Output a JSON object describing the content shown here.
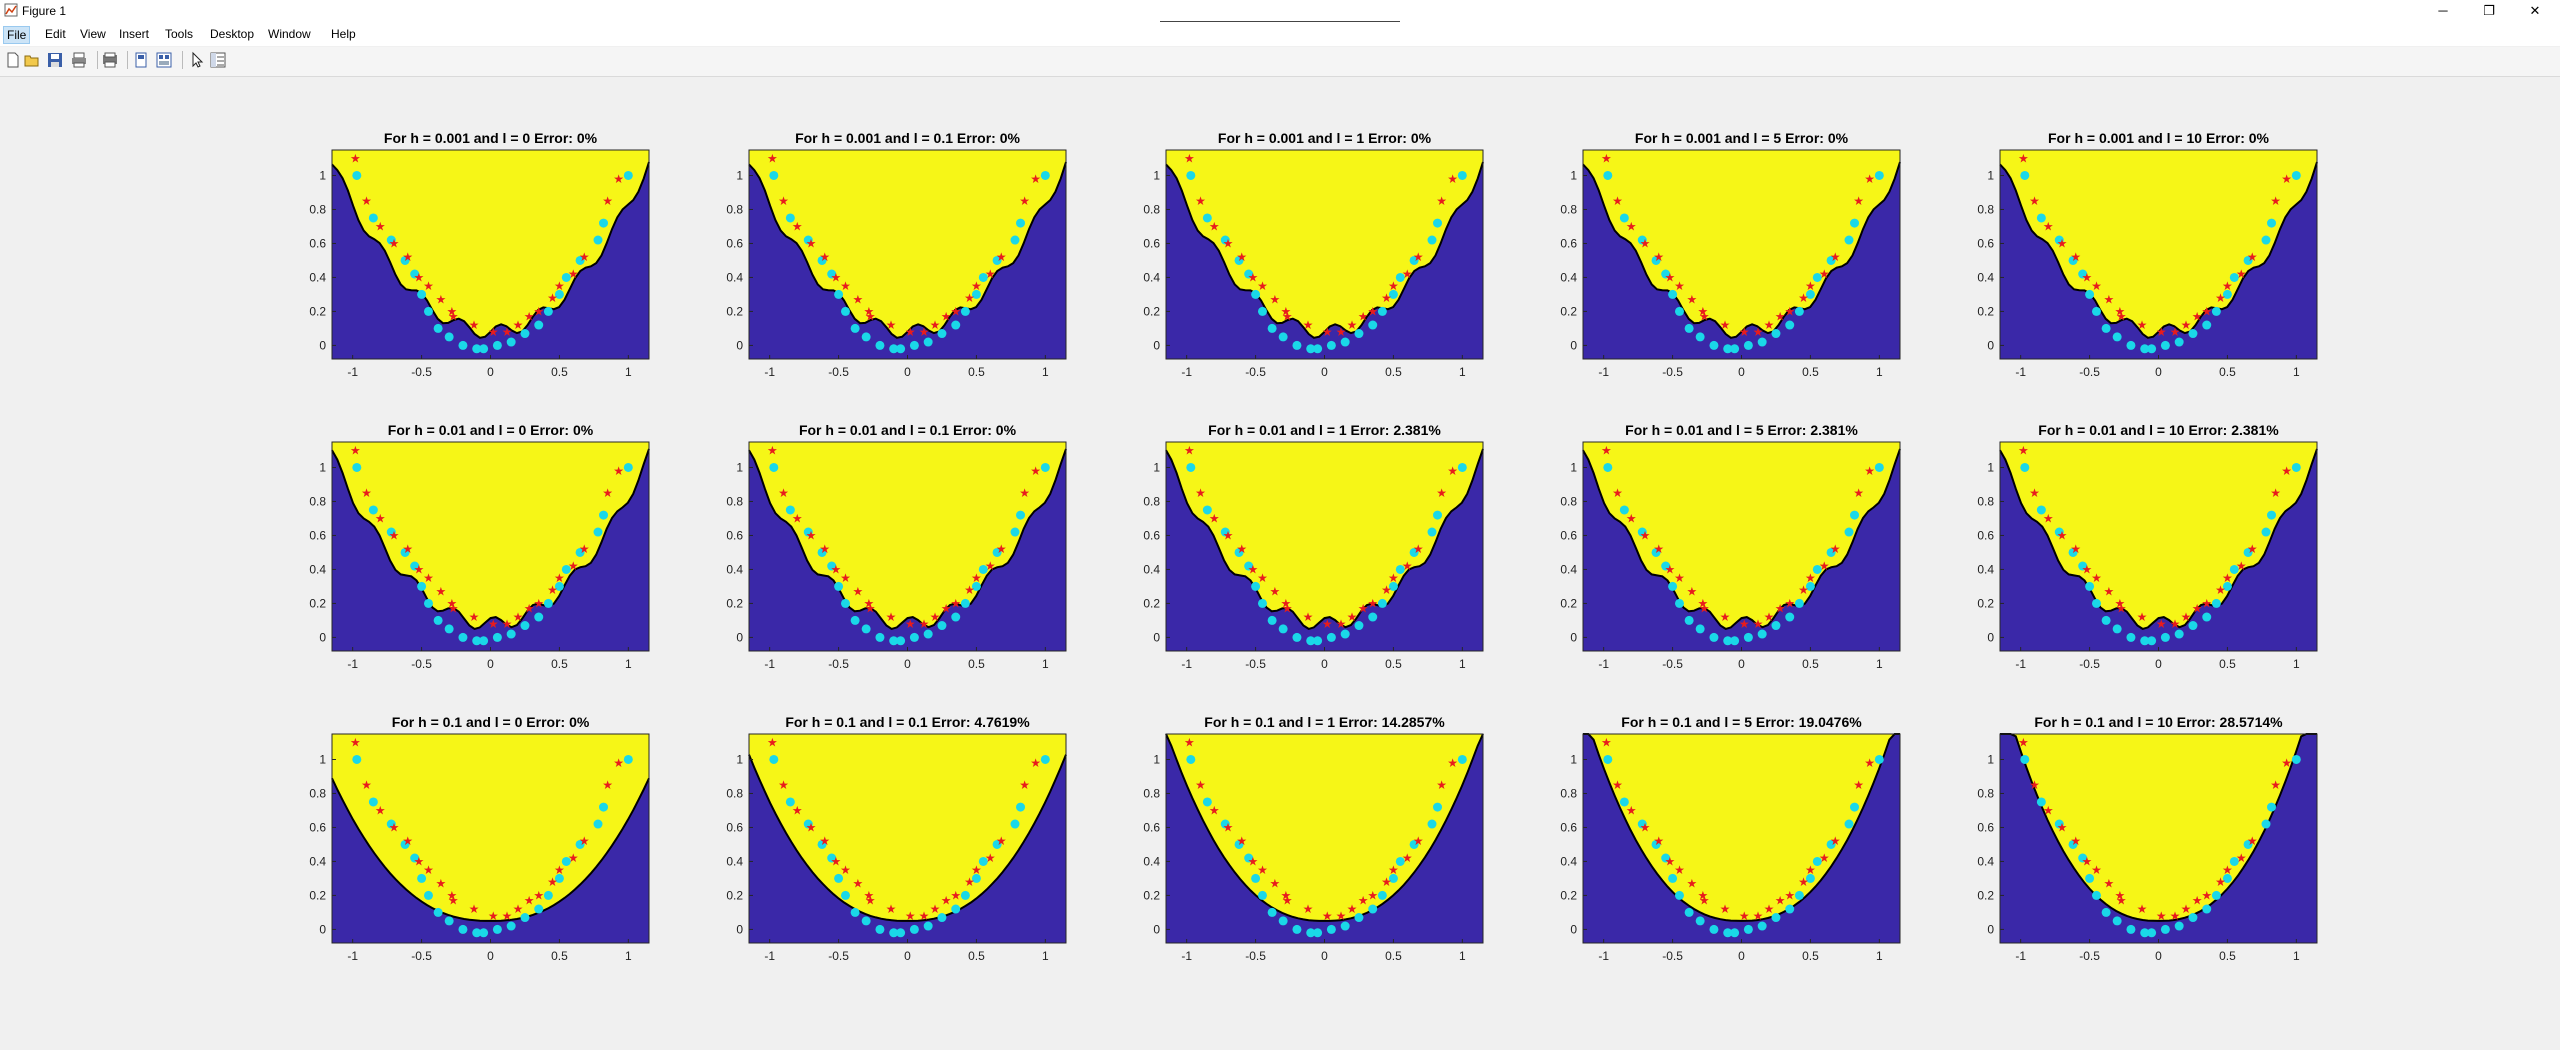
{
  "window": {
    "title": "Figure 1"
  },
  "window_controls": [
    "─",
    "❐",
    "✕"
  ],
  "menu": [
    "File",
    "Edit",
    "View",
    "Insert",
    "Tools",
    "Desktop",
    "Window",
    "Help"
  ],
  "toolbar": [
    "new-figure-icon",
    "open-file-icon",
    "save-icon",
    "print-icon",
    "print-preview-icon",
    "link-plot-icon",
    "insert-colorbar-icon",
    "edit-plot-icon",
    "property-inspector-icon"
  ],
  "colors": {
    "class_region": "#f6f617",
    "other_region": "#3a28a8",
    "star_marker": "#e81c1c",
    "circle_marker": "#1ad8e8",
    "boundary": "#000000"
  },
  "chart_data": {
    "type": "scatter",
    "grid": "3x5",
    "xlim": [
      -1.15,
      1.15
    ],
    "ylim": [
      -0.08,
      1.15
    ],
    "xticks": [
      "-1",
      "-0.5",
      "0",
      "0.5",
      "1"
    ],
    "yticks": [
      "0",
      "0.2",
      "0.4",
      "0.6",
      "0.8",
      "1"
    ],
    "legend": "none",
    "series": [
      {
        "marker": "star",
        "color": "#e81c1c",
        "x": [
          -0.98,
          -0.9,
          -0.8,
          -0.7,
          -0.6,
          -0.52,
          -0.45,
          -0.36,
          -0.28,
          -0.27,
          -0.12,
          0.02,
          0.12,
          0.2,
          0.28,
          0.35,
          0.45,
          0.5,
          0.6,
          0.68,
          0.85,
          0.93
        ],
        "y": [
          1.1,
          0.85,
          0.7,
          0.6,
          0.52,
          0.4,
          0.35,
          0.27,
          0.2,
          0.17,
          0.12,
          0.08,
          0.08,
          0.12,
          0.17,
          0.2,
          0.28,
          0.35,
          0.42,
          0.52,
          0.85,
          0.98
        ]
      },
      {
        "marker": "circle",
        "color": "#1ad8e8",
        "x": [
          -0.97,
          -0.85,
          -0.72,
          -0.62,
          -0.55,
          -0.5,
          -0.45,
          -0.38,
          -0.3,
          -0.2,
          -0.1,
          -0.05,
          0.05,
          0.15,
          0.25,
          0.35,
          0.42,
          0.5,
          0.55,
          0.65,
          0.78,
          0.82,
          1.0
        ],
        "y": [
          1.0,
          0.75,
          0.62,
          0.5,
          0.42,
          0.3,
          0.2,
          0.1,
          0.05,
          0.0,
          -0.02,
          -0.02,
          0.0,
          0.02,
          0.07,
          0.12,
          0.2,
          0.3,
          0.4,
          0.5,
          0.62,
          0.72,
          1.0
        ]
      }
    ],
    "subplots": [
      {
        "title": "For h = 0.001 and l = 0 Error: 0%"
      },
      {
        "title": "For h = 0.001 and l = 0.1 Error: 0%"
      },
      {
        "title": "For h = 0.001 and l = 1 Error: 0%"
      },
      {
        "title": "For h = 0.001 and l = 5 Error: 0%"
      },
      {
        "title": "For h = 0.001 and l = 10 Error: 0%"
      },
      {
        "title": "For h = 0.01 and l = 0 Error: 0%"
      },
      {
        "title": "For h = 0.01 and l = 0.1 Error: 0%"
      },
      {
        "title": "For h = 0.01 and l = 1 Error: 2.381%"
      },
      {
        "title": "For h = 0.01 and l = 5 Error: 2.381%"
      },
      {
        "title": "For h = 0.01 and l = 10 Error: 2.381%"
      },
      {
        "title": "For h = 0.1 and l = 0 Error: 0%"
      },
      {
        "title": "For h = 0.1 and l = 0.1 Error: 4.7619%"
      },
      {
        "title": "For h = 0.1 and l = 1 Error: 14.2857%"
      },
      {
        "title": "For h = 0.1 and l = 5 Error: 19.0476%"
      },
      {
        "title": "For h = 0.1 and l = 10 Error: 28.5714%"
      }
    ]
  }
}
